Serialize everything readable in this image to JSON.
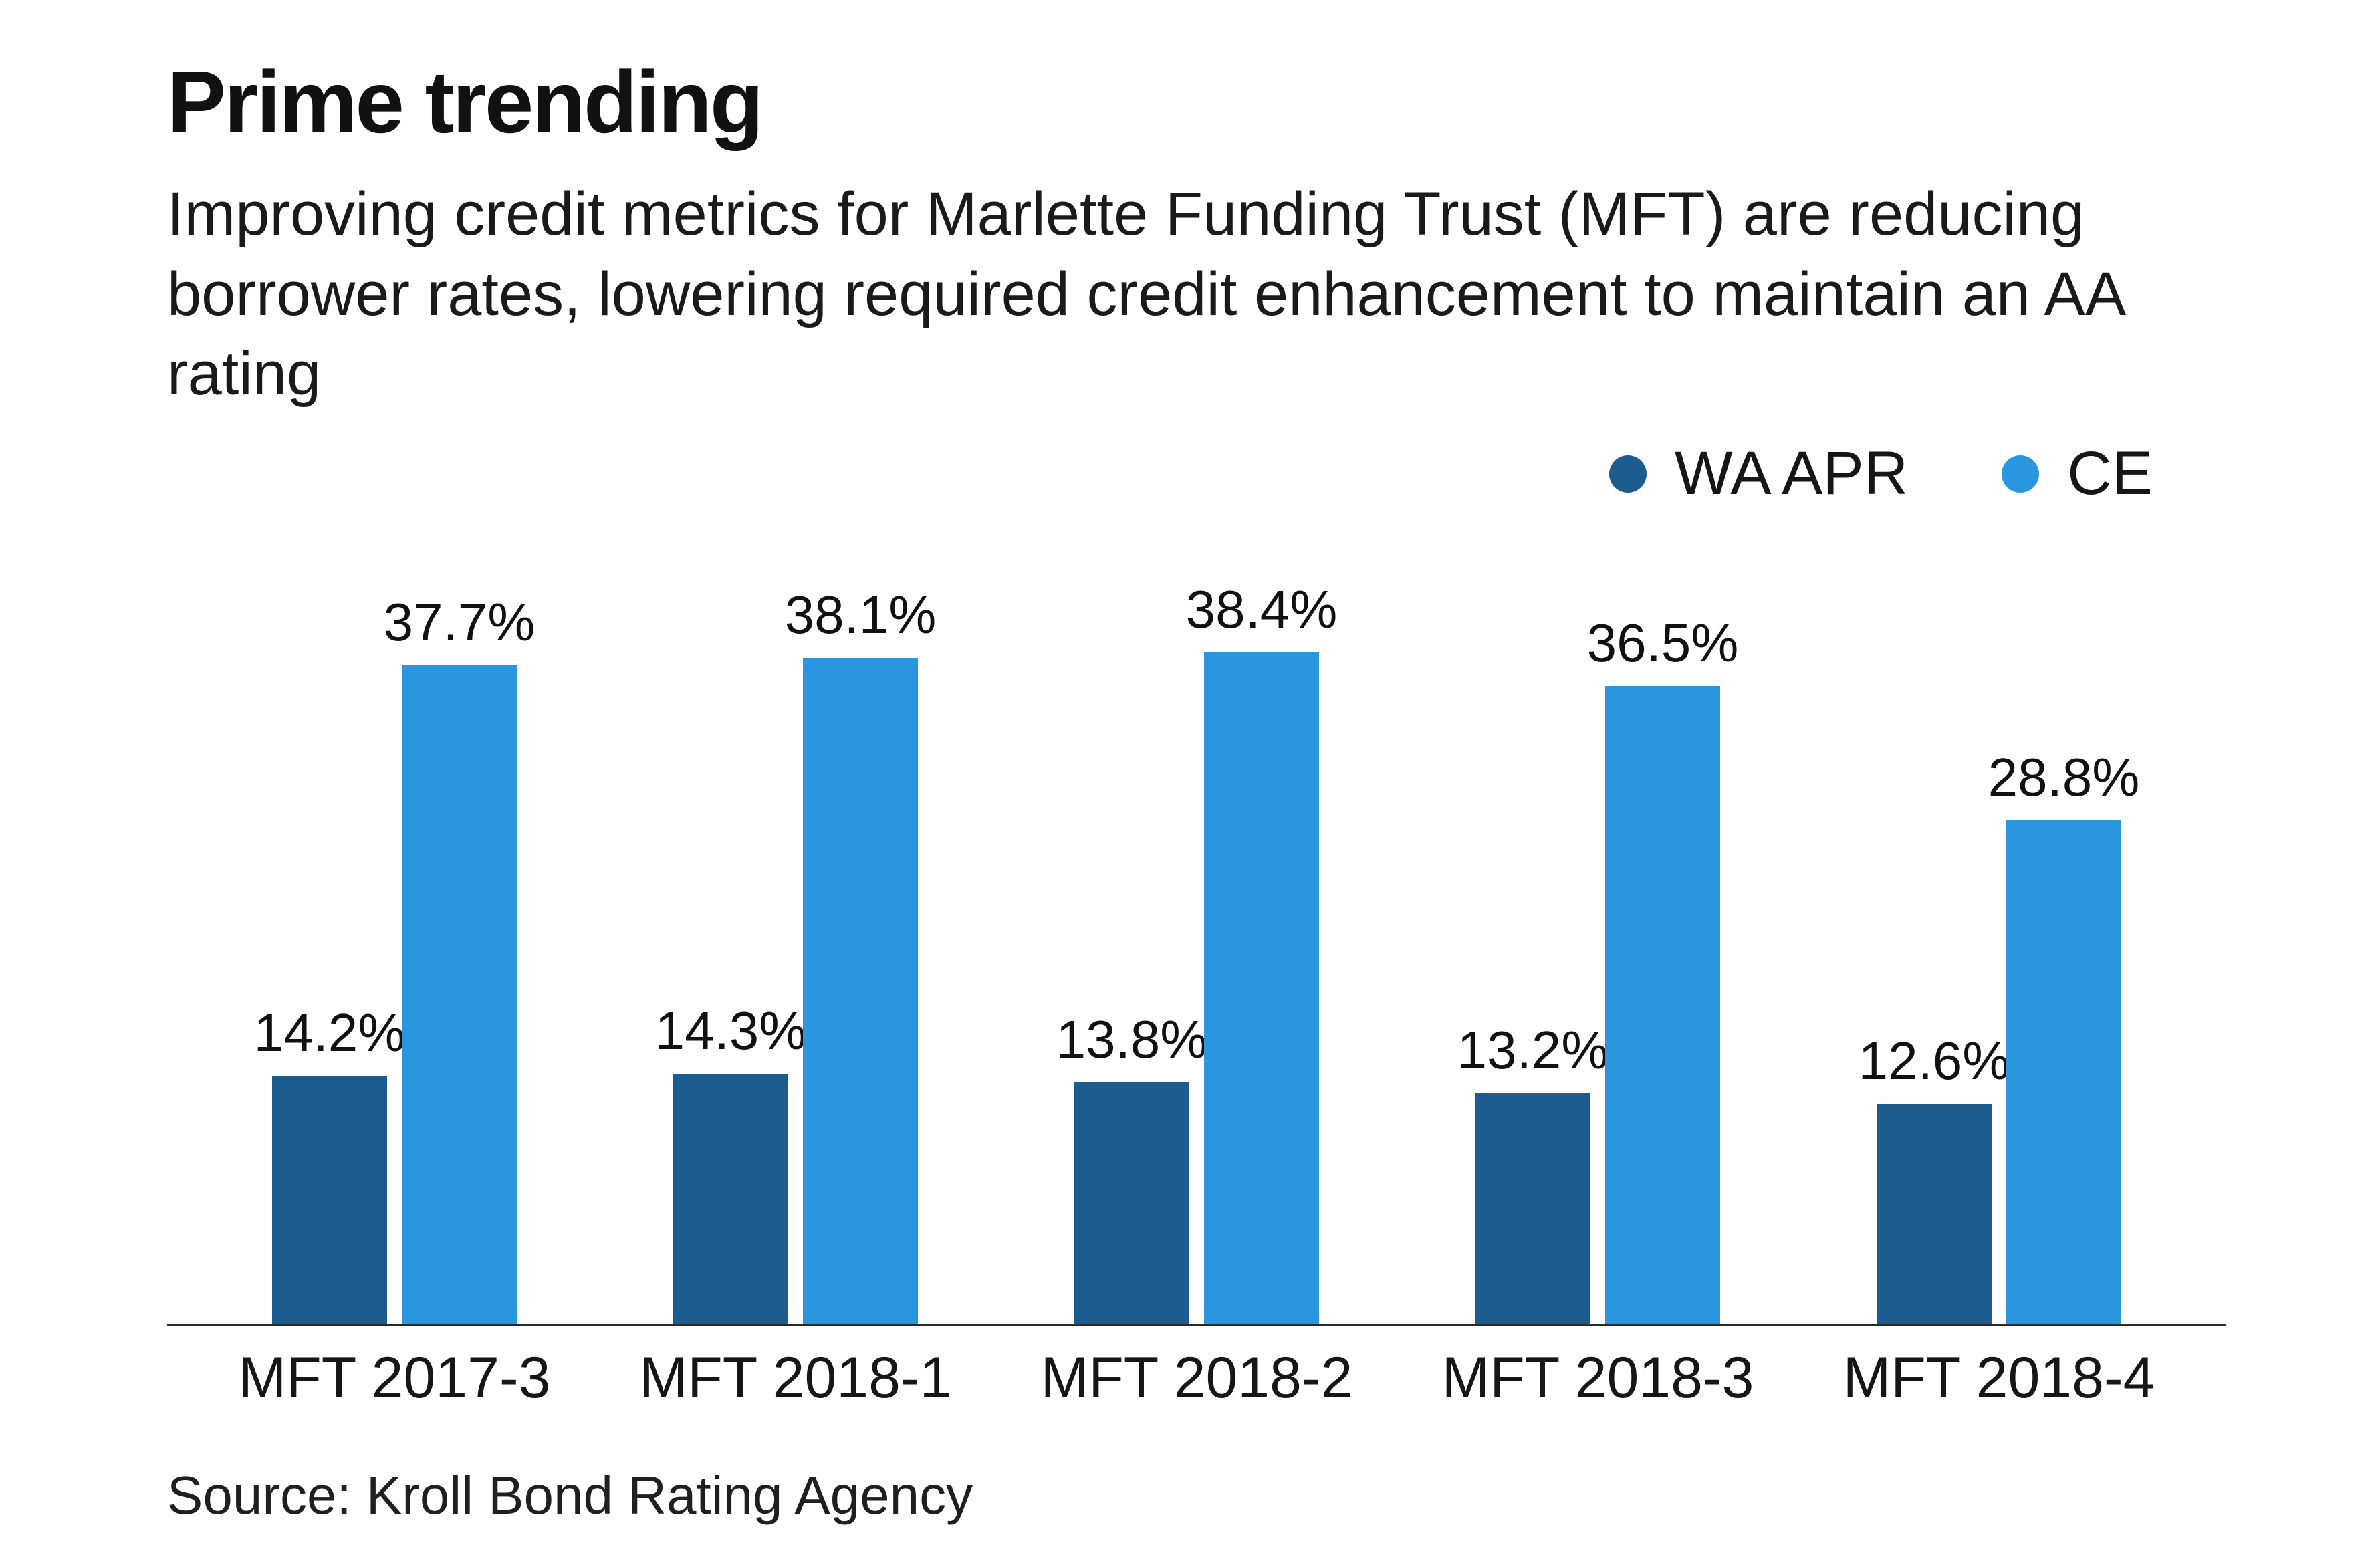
{
  "chart_data": {
    "type": "bar",
    "title": "Prime trending",
    "subtitle": "Improving credit metrics for Marlette Funding Trust (MFT) are reducing borrower rates, lowering required credit enhancement to maintain an AA rating",
    "categories": [
      "MFT 2017-3",
      "MFT 2018-1",
      "MFT 2018-2",
      "MFT 2018-3",
      "MFT 2018-4"
    ],
    "series": [
      {
        "name": "WA APR",
        "color": "#1d5c8f",
        "values": [
          14.2,
          14.3,
          13.8,
          13.2,
          12.6
        ]
      },
      {
        "name": "CE",
        "color": "#2a96e0",
        "values": [
          37.7,
          38.1,
          38.4,
          36.5,
          28.8
        ]
      }
    ],
    "value_suffix": "%",
    "ylim": [
      0,
      44
    ],
    "grid": false,
    "legend_position": "top-right",
    "xlabel": "",
    "ylabel": "",
    "source": "Source: Kroll Bond Rating Agency"
  }
}
